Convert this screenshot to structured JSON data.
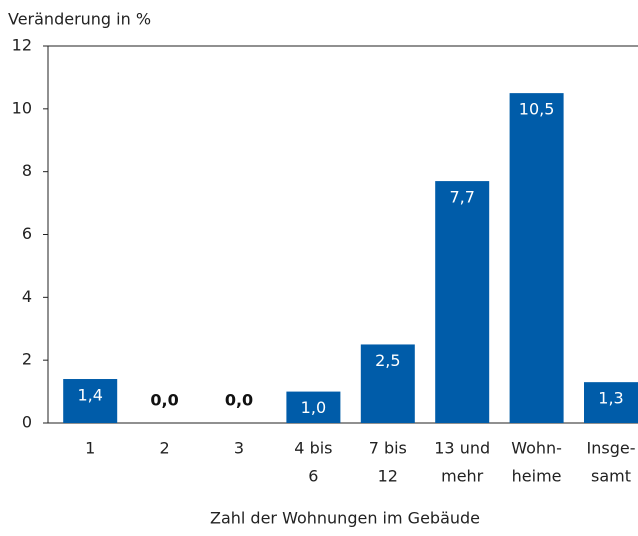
{
  "chart_data": {
    "type": "bar",
    "y_label": "Veränderung in %",
    "x_label": "Zahl der Wohnungen im Gebäude",
    "categories": [
      [
        "1"
      ],
      [
        "2"
      ],
      [
        "3"
      ],
      [
        "4 bis",
        "6"
      ],
      [
        "7 bis",
        "12"
      ],
      [
        "13 und",
        "mehr"
      ],
      [
        "Wohn-",
        "heime"
      ],
      [
        "Insge-",
        "samt"
      ]
    ],
    "values": [
      1.4,
      0.0,
      0.0,
      1.0,
      2.5,
      7.7,
      10.5,
      1.3
    ],
    "value_labels": [
      "1,4",
      "0,0",
      "0,0",
      "1,0",
      "2,5",
      "7,7",
      "10,5",
      "1,3"
    ],
    "color": "#005ca9",
    "ylim": [
      0,
      12
    ],
    "yticks": [
      0,
      2,
      4,
      6,
      8,
      10,
      12
    ]
  }
}
